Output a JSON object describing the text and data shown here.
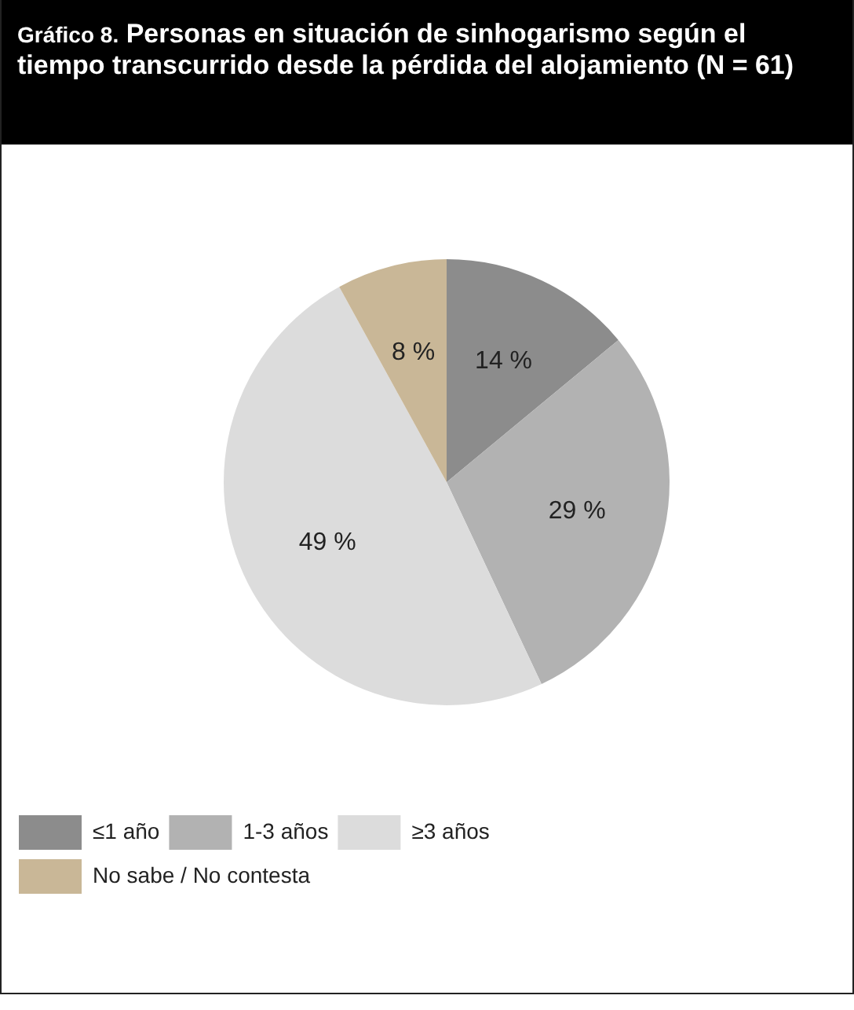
{
  "chart_data": {
    "type": "pie",
    "title": "Gráfico 8. Personas en situación de sinhogarismo según el tiempo transcurrido desde la pérdida del alojamiento (N = 61)",
    "categories": [
      "≤1 año",
      "1-3 años",
      "≥3 años",
      "No sabe / No contesta"
    ],
    "values": [
      14,
      29,
      49,
      8
    ],
    "colors": [
      "#8c8c8c",
      "#b2b2b2",
      "#dcdcdc",
      "#c9b797"
    ],
    "value_labels": [
      "14 %",
      "29 %",
      "49 %",
      "8 %"
    ],
    "legend": "bottom left"
  }
}
